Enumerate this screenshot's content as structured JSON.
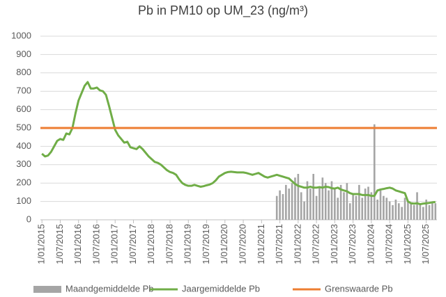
{
  "chart_data": {
    "type": "bar_line",
    "title": "Pb in PM10 op UM_23 (ng/m³)",
    "categories": [
      "1/01/2015",
      null,
      null,
      null,
      null,
      null,
      "1/07/2015",
      null,
      null,
      null,
      null,
      null,
      "1/01/2016",
      null,
      null,
      null,
      null,
      null,
      "1/07/2016",
      null,
      null,
      null,
      null,
      null,
      "1/01/2017",
      null,
      null,
      null,
      null,
      null,
      "1/07/2017",
      null,
      null,
      null,
      null,
      null,
      "1/01/2018",
      null,
      null,
      null,
      null,
      null,
      "1/07/2018",
      null,
      null,
      null,
      null,
      null,
      "1/01/2019",
      null,
      null,
      null,
      null,
      null,
      "1/07/2019",
      null,
      null,
      null,
      null,
      null,
      "1/01/2020",
      null,
      null,
      null,
      null,
      null,
      "1/07/2020",
      null,
      null,
      null,
      null,
      null,
      "1/01/2021",
      null,
      null,
      null,
      null,
      null,
      "1/07/2021",
      null,
      null,
      null,
      null,
      null,
      "1/01/2022",
      null,
      null,
      null,
      null,
      null,
      "1/07/2022",
      null,
      null,
      null,
      null,
      null,
      "1/01/2023",
      null,
      null,
      null,
      null,
      null,
      "1/07/2023",
      null,
      null,
      null,
      null,
      null,
      "1/01/2024",
      null,
      null,
      null,
      null,
      null,
      "1/07/2024",
      null,
      null,
      null,
      null,
      null,
      "1/01/2025",
      null,
      null,
      null,
      null,
      null,
      "1/07/2025",
      null,
      null,
      null
    ],
    "series": [
      {
        "name": "Maandgemiddelde Pb",
        "type": "bar",
        "color": "#a5a5a5",
        "values": [
          null,
          null,
          null,
          null,
          null,
          null,
          null,
          null,
          null,
          null,
          null,
          null,
          null,
          null,
          null,
          null,
          null,
          null,
          null,
          null,
          null,
          null,
          null,
          null,
          null,
          null,
          null,
          null,
          null,
          null,
          null,
          null,
          null,
          null,
          null,
          null,
          null,
          null,
          null,
          null,
          null,
          null,
          null,
          null,
          null,
          null,
          null,
          null,
          null,
          null,
          null,
          null,
          null,
          null,
          null,
          null,
          null,
          null,
          null,
          null,
          null,
          null,
          null,
          null,
          null,
          null,
          null,
          null,
          null,
          null,
          null,
          null,
          null,
          null,
          null,
          null,
          null,
          130,
          160,
          140,
          190,
          170,
          200,
          230,
          250,
          150,
          100,
          210,
          170,
          250,
          130,
          180,
          230,
          200,
          160,
          210,
          170,
          120,
          190,
          150,
          200,
          90,
          140,
          130,
          190,
          120,
          170,
          180,
          150,
          520,
          110,
          160,
          130,
          120,
          100,
          80,
          110,
          90,
          70,
          120,
          100,
          90,
          80,
          150,
          90,
          70,
          110,
          80,
          100,
          90
        ]
      },
      {
        "name": "Jaargemiddelde Pb",
        "type": "line",
        "color": "#70ad47",
        "values": [
          360,
          345,
          350,
          370,
          400,
          430,
          440,
          435,
          470,
          465,
          500,
          580,
          650,
          690,
          730,
          750,
          715,
          715,
          720,
          705,
          700,
          680,
          620,
          555,
          490,
          460,
          440,
          420,
          425,
          395,
          390,
          385,
          400,
          385,
          365,
          345,
          330,
          315,
          310,
          300,
          285,
          270,
          260,
          255,
          245,
          220,
          200,
          190,
          185,
          185,
          190,
          185,
          180,
          183,
          188,
          192,
          200,
          215,
          235,
          245,
          255,
          260,
          262,
          260,
          258,
          258,
          258,
          255,
          250,
          245,
          250,
          255,
          245,
          235,
          230,
          235,
          240,
          245,
          240,
          235,
          230,
          225,
          210,
          195,
          185,
          180,
          175,
          175,
          180,
          175,
          175,
          178,
          175,
          180,
          178,
          172,
          170,
          175,
          165,
          160,
          155,
          145,
          140,
          140,
          140,
          135,
          135,
          135,
          130,
          130,
          160,
          165,
          168,
          172,
          175,
          170,
          160,
          155,
          150,
          145,
          100,
          90,
          88,
          90,
          85,
          88,
          90,
          92,
          95,
          97
        ]
      },
      {
        "name": "Grenswaarde Pb",
        "type": "hline",
        "color": "#ed7d31",
        "value": 500
      }
    ],
    "ylim": [
      0,
      1000
    ],
    "yticks": [
      0,
      100,
      200,
      300,
      400,
      500,
      600,
      700,
      800,
      900,
      1000
    ],
    "grid": true,
    "legend": "bottom"
  }
}
